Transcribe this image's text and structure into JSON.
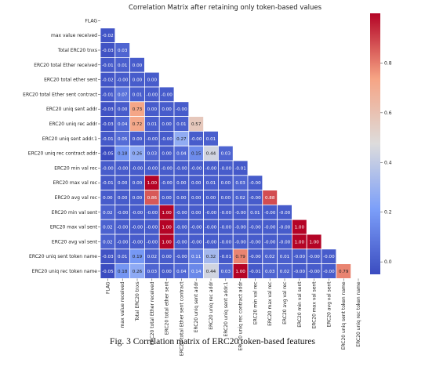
{
  "figure": {
    "caption": "Fig. 3 Correlation matrix of ERC20 token-based features"
  },
  "chart_data": {
    "type": "heatmap",
    "title": "Correlation Matrix after retaining only token-based values",
    "variables": [
      "FLAG",
      "max value received",
      "Total ERC20 tnxs",
      "ERC20 total Ether received",
      "ERC20 total ether sent",
      "ERC20 total Ether sent contract",
      "ERC20 uniq sent addr",
      "ERC20 uniq rec addr",
      "ERC20 uniq sent addr.1",
      "ERC20 uniq rec contract addr",
      "ERC20 min val rec",
      "ERC20 max val rec",
      "ERC20 avg val rec",
      "ERC20 min val sent",
      "ERC20 max val sent",
      "ERC20 avg val sent",
      "ERC20 uniq sent token name",
      "ERC20 uniq rec token name"
    ],
    "lower_triangle_labels": [
      [],
      [
        "-0.02"
      ],
      [
        "-0.03",
        "0.03"
      ],
      [
        "-0.01",
        "0.01",
        "0.00"
      ],
      [
        "-0.02",
        "-0.00",
        "0.00",
        "0.00"
      ],
      [
        "-0.01",
        "0.07",
        "0.01",
        "-0.00",
        "-0.00"
      ],
      [
        "-0.03",
        "0.00",
        "0.73",
        "0.00",
        "0.00",
        "-0.00"
      ],
      [
        "-0.03",
        "0.04",
        "0.72",
        "0.01",
        "0.00",
        "0.01",
        "0.57"
      ],
      [
        "-0.01",
        "0.05",
        "0.00",
        "-0.00",
        "-0.00",
        "0.27",
        "-0.00",
        "0.01"
      ],
      [
        "-0.05",
        "0.18",
        "0.26",
        "0.03",
        "0.00",
        "0.04",
        "0.15",
        "0.44",
        "0.03"
      ],
      [
        "-0.00",
        "-0.00",
        "-0.00",
        "-0.00",
        "-0.00",
        "-0.00",
        "-0.00",
        "-0.00",
        "-0.00",
        "-0.01"
      ],
      [
        "-0.01",
        "0.00",
        "0.00",
        "1.00",
        "-0.00",
        "0.00",
        "0.00",
        "0.01",
        "0.00",
        "0.03",
        "-0.00"
      ],
      [
        "0.00",
        "0.00",
        "0.00",
        "0.86",
        "0.00",
        "0.00",
        "0.00",
        "0.00",
        "0.00",
        "0.02",
        "-0.00",
        "0.88"
      ],
      [
        "0.02",
        "-0.00",
        "-0.00",
        "-0.00",
        "1.00",
        "-0.00",
        "0.00",
        "-0.00",
        "-0.00",
        "-0.00",
        "0.01",
        "-0.00",
        "-0.00"
      ],
      [
        "0.02",
        "-0.00",
        "-0.00",
        "-0.00",
        "1.00",
        "-0.00",
        "-0.00",
        "-0.00",
        "-0.00",
        "-0.00",
        "-0.00",
        "-0.00",
        "-0.00",
        "1.00"
      ],
      [
        "0.02",
        "-0.00",
        "-0.00",
        "-0.00",
        "1.00",
        "-0.00",
        "-0.00",
        "-0.00",
        "-0.00",
        "-0.00",
        "-0.00",
        "-0.00",
        "-0.00",
        "1.00",
        "1.00"
      ],
      [
        "-0.03",
        "0.01",
        "0.19",
        "0.02",
        "0.00",
        "-0.00",
        "0.11",
        "0.32",
        "-0.01",
        "0.79",
        "-0.00",
        "0.02",
        "0.01",
        "-0.00",
        "-0.00",
        "-0.00"
      ],
      [
        "-0.05",
        "0.18",
        "0.26",
        "0.03",
        "0.00",
        "0.04",
        "0.14",
        "0.44",
        "0.03",
        "1.00",
        "-0.01",
        "0.03",
        "0.02",
        "-0.00",
        "-0.00",
        "-0.00",
        "0.79"
      ]
    ],
    "colorbar": {
      "range": [
        -0.05,
        1.0
      ],
      "ticks": [
        "0.0",
        "0.2",
        "0.4",
        "0.6",
        "0.8"
      ],
      "tick_values": [
        0.0,
        0.2,
        0.4,
        0.6,
        0.8
      ],
      "colormap": "coolwarm"
    },
    "grid_line_color": "#ffffff",
    "mask": "upper triangle and diagonal hidden"
  }
}
